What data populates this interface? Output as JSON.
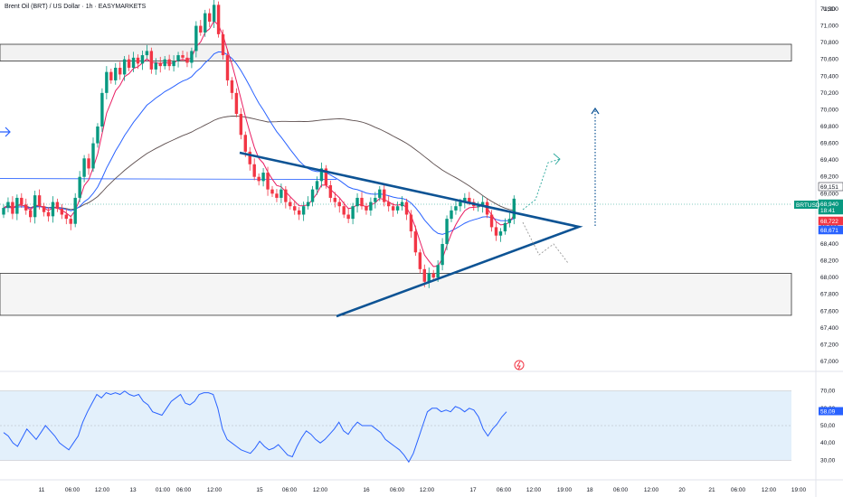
{
  "header": {
    "title": "Brent Oil (BRT) / US Dollar · 1h · EASYMARKETS"
  },
  "icons": {
    "lightning": "lightning-icon",
    "arrow": "arrow-right-icon"
  },
  "colors": {
    "bull": "#089981",
    "bear": "#f23645",
    "ema_fast": "#e91e63",
    "ema_slow": "#2962ff",
    "ma_long": "#5d4e4e",
    "pattern": "#0d5394",
    "rsi": "#2962ff",
    "rsi_band": "#e3f0fb"
  },
  "chart_data": {
    "type": "candlestick",
    "symbol": "BRTUSD",
    "y_unit": "USD",
    "price_ticks": [
      "71,200",
      "71,000",
      "70,800",
      "70,600",
      "70,400",
      "70,200",
      "70,000",
      "69,800",
      "69,600",
      "69,400",
      "69,200",
      "69,000",
      "68,800",
      "68,600",
      "68,400",
      "68,200",
      "68,000",
      "67,800",
      "67,600",
      "67,400",
      "67,200",
      "67,000"
    ],
    "ylim": [
      67000,
      71250
    ],
    "time_ticks": [
      "11",
      "06:00",
      "12:00",
      "13",
      "01:00",
      "06:00",
      "12:00",
      "15",
      "06:00",
      "12:00",
      "16",
      "06:00",
      "12:00",
      "17",
      "06:00",
      "12:00",
      "19:00",
      "18",
      "06:00",
      "12:00",
      "20",
      "21",
      "06:00",
      "12:00",
      "19:00"
    ],
    "candles_close": [
      68830,
      68900,
      68760,
      68950,
      68870,
      68800,
      68720,
      68980,
      68850,
      68780,
      68730,
      68900,
      68820,
      68750,
      68700,
      68640,
      68950,
      69200,
      69420,
      69300,
      69600,
      69800,
      70200,
      70450,
      70350,
      70500,
      70420,
      70600,
      70500,
      70620,
      70550,
      70650,
      70700,
      70480,
      70560,
      70520,
      70600,
      70520,
      70580,
      70650,
      70620,
      70560,
      70700,
      71000,
      70920,
      71150,
      71050,
      71250,
      70900,
      70650,
      70350,
      70200,
      69950,
      69700,
      69500,
      69350,
      69200,
      69150,
      69250,
      69050,
      69000,
      68950,
      69050,
      68900,
      68850,
      68800,
      68750,
      68850,
      68900,
      69050,
      69150,
      69300,
      69100,
      68950,
      68900,
      68850,
      68750,
      68700,
      68850,
      68950,
      68850,
      68800,
      68900,
      68950,
      69050,
      68900,
      68850,
      68800,
      68850,
      68900,
      68750,
      68550,
      68300,
      68100,
      67950,
      68050,
      68000,
      68150,
      68400,
      68700,
      68800,
      68850,
      68900,
      68950,
      68900,
      68850,
      68850,
      68900,
      68750,
      68600,
      68500,
      68550,
      68650,
      68700,
      68940
    ],
    "candles_open": [
      68750,
      68830,
      68900,
      68760,
      68950,
      68870,
      68800,
      68720,
      68980,
      68850,
      68780,
      68730,
      68900,
      68820,
      68750,
      68700,
      68640,
      68950,
      69200,
      69420,
      69300,
      69600,
      69800,
      70200,
      70450,
      70350,
      70500,
      70420,
      70600,
      70500,
      70620,
      70550,
      70650,
      70700,
      70480,
      70560,
      70520,
      70600,
      70520,
      70580,
      70650,
      70620,
      70560,
      70700,
      71000,
      70920,
      71150,
      71050,
      71250,
      70900,
      70650,
      70350,
      70200,
      69950,
      69700,
      69500,
      69350,
      69200,
      69150,
      69250,
      69050,
      69000,
      68950,
      69050,
      68900,
      68850,
      68800,
      68750,
      68850,
      68900,
      69050,
      69150,
      69300,
      69100,
      68950,
      68900,
      68850,
      68750,
      68700,
      68850,
      68950,
      68850,
      68800,
      68900,
      68950,
      69050,
      68900,
      68850,
      68800,
      68850,
      68900,
      68750,
      68550,
      68300,
      68100,
      67950,
      68050,
      68000,
      68150,
      68400,
      68700,
      68800,
      68850,
      68900,
      68950,
      68900,
      68850,
      68850,
      68900,
      68750,
      68600,
      68500,
      68550,
      68650,
      68700
    ],
    "support_zone": [
      67550,
      68050
    ],
    "resistance_zone": [
      70580,
      70780
    ],
    "horizontal_line": 69180,
    "price_tags": [
      {
        "label": "69,151",
        "color": "#ffffff",
        "text_color": "#131722"
      },
      {
        "label": "68,940",
        "sub": "18:41",
        "color": "#089981",
        "text_color": "#ffffff"
      },
      {
        "label": "68,722",
        "color": "#f23645",
        "text_color": "#ffffff"
      },
      {
        "label": "68,671",
        "color": "#2962ff",
        "text_color": "#ffffff"
      }
    ],
    "symbol_tag": "BRTUSD",
    "rsi": {
      "ticks": [
        "70,00",
        "60,00",
        "50,00",
        "40,00",
        "30,00"
      ],
      "ylim": [
        26,
        74
      ],
      "band": [
        30,
        70
      ],
      "current_label": "58,09",
      "values": [
        46,
        44,
        40,
        38,
        43,
        48,
        45,
        42,
        46,
        50,
        47,
        44,
        40,
        38,
        36,
        40,
        44,
        52,
        58,
        63,
        68,
        66,
        69,
        68,
        69,
        68,
        70,
        68,
        67,
        68,
        64,
        62,
        58,
        57,
        56,
        60,
        64,
        66,
        68,
        63,
        62,
        64,
        68,
        69,
        69,
        68,
        60,
        48,
        42,
        40,
        38,
        36,
        35,
        34,
        37,
        41,
        38,
        36,
        37,
        39,
        36,
        33,
        32,
        38,
        43,
        47,
        45,
        42,
        40,
        42,
        45,
        48,
        52,
        47,
        45,
        49,
        52,
        50,
        50,
        50,
        48,
        46,
        42,
        40,
        38,
        36,
        33,
        29,
        34,
        42,
        50,
        58,
        60,
        60,
        58,
        59,
        58,
        61,
        60,
        58,
        60,
        59,
        55,
        48,
        44,
        48,
        51,
        55,
        58
      ]
    }
  }
}
